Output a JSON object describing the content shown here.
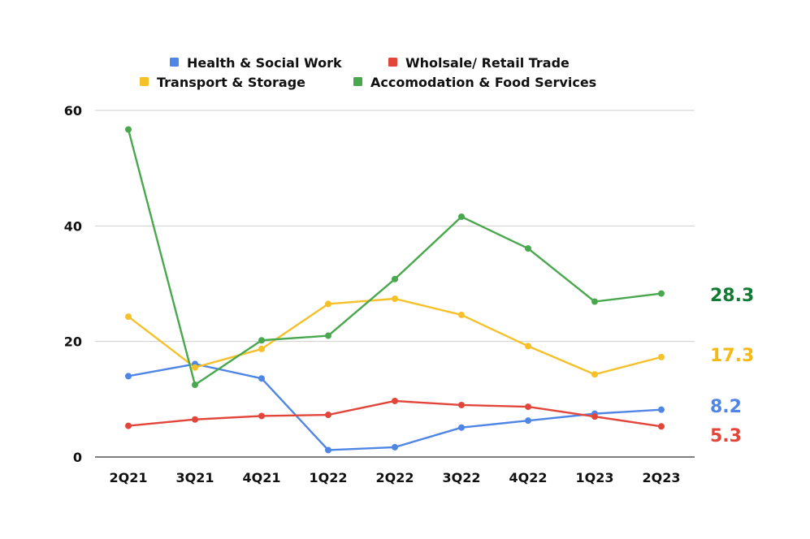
{
  "chart_data": {
    "type": "line",
    "categories": [
      "2Q21",
      "3Q21",
      "4Q21",
      "1Q22",
      "2Q22",
      "3Q22",
      "4Q22",
      "1Q23",
      "2Q23"
    ],
    "ylim": [
      0,
      60
    ],
    "yticks": [
      "0",
      "20",
      "40",
      "60"
    ],
    "grid": true,
    "legend_position": "top",
    "series": [
      {
        "name": "Health & Social Work",
        "color": "#4f86e6",
        "label_color": "#4f86e6",
        "end_label": "8.2",
        "values": [
          14.0,
          16.1,
          13.6,
          1.2,
          1.7,
          5.1,
          6.3,
          7.5,
          8.2
        ]
      },
      {
        "name": "Wholsale/ Retail Trade",
        "color": "#e2463a",
        "label_color": "#e2463a",
        "end_label": "5.3",
        "values": [
          5.4,
          6.5,
          7.1,
          7.3,
          9.7,
          9.0,
          8.7,
          7.0,
          5.3
        ]
      },
      {
        "name": "Transport & Storage",
        "color": "#f5c12a",
        "label_color": "#f5b915",
        "end_label": "17.3",
        "values": [
          24.3,
          15.5,
          18.7,
          26.5,
          27.4,
          24.6,
          19.2,
          14.3,
          17.3
        ]
      },
      {
        "name": "Accomodation & Food Services",
        "color": "#49a84e",
        "label_color": "#137a33",
        "end_label": "28.3",
        "values": [
          56.7,
          12.5,
          20.2,
          21.0,
          30.8,
          41.6,
          36.1,
          26.9,
          28.3
        ]
      }
    ]
  }
}
